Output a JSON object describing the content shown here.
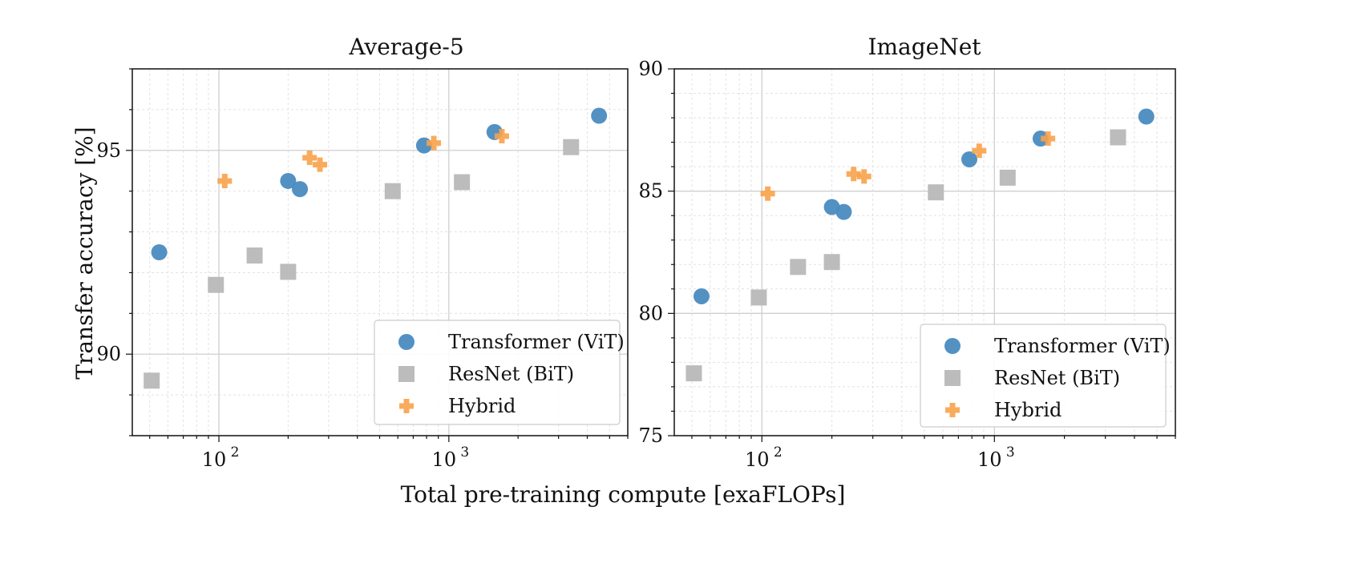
{
  "figure": {
    "xlabel": "Total pre-training compute [exaFLOPs]",
    "ylabel": "Transfer accuracy [%]"
  },
  "colors": {
    "vit": "#4a8bc0",
    "bit": "#bcbcbc",
    "hybrid": "#f8a24a",
    "grid_major": "#cfcfcf",
    "grid_minor": "#e2e2e2",
    "axis": "#111111"
  },
  "chart_data": [
    {
      "type": "scatter",
      "title": "Average-5",
      "xscale": "log",
      "xlim": [
        42,
        6000
      ],
      "ylim": [
        88,
        97
      ],
      "xticks": [
        {
          "value": 100,
          "base": "10",
          "exp": "2"
        },
        {
          "value": 1000,
          "base": "10",
          "exp": "3"
        }
      ],
      "yticks": [
        90,
        95
      ],
      "ytick_labels": [
        "90",
        "95"
      ],
      "legend_position": "lower-right",
      "series": [
        {
          "name": "Transformer (ViT)",
          "marker": "circle",
          "points": [
            [
              55,
              92.5
            ],
            [
              200,
              94.25
            ],
            [
              225,
              94.05
            ],
            [
              780,
              95.12
            ],
            [
              1580,
              95.45
            ],
            [
              4500,
              95.85
            ]
          ]
        },
        {
          "name": "ResNet (BiT)",
          "marker": "square",
          "points": [
            [
              51,
              89.35
            ],
            [
              97,
              91.7
            ],
            [
              143,
              92.42
            ],
            [
              200,
              92.02
            ],
            [
              570,
              94.0
            ],
            [
              1140,
              94.22
            ],
            [
              3400,
              95.08
            ]
          ]
        },
        {
          "name": "Hybrid",
          "marker": "plus",
          "points": [
            [
              106,
              94.25
            ],
            [
              248,
              94.82
            ],
            [
              275,
              94.65
            ],
            [
              860,
              95.18
            ],
            [
              1700,
              95.35
            ]
          ]
        }
      ]
    },
    {
      "type": "scatter",
      "title": "ImageNet",
      "xscale": "log",
      "xlim": [
        42,
        6000
      ],
      "ylim": [
        75,
        90
      ],
      "xticks": [
        {
          "value": 100,
          "base": "10",
          "exp": "2"
        },
        {
          "value": 1000,
          "base": "10",
          "exp": "3"
        }
      ],
      "yticks": [
        75,
        80,
        85,
        90
      ],
      "ytick_labels": [
        "75",
        "80",
        "85",
        "90"
      ],
      "legend_position": "lower-right",
      "series": [
        {
          "name": "Transformer (ViT)",
          "marker": "circle",
          "points": [
            [
              55,
              80.7
            ],
            [
              200,
              84.35
            ],
            [
              225,
              84.15
            ],
            [
              780,
              86.3
            ],
            [
              1580,
              87.15
            ],
            [
              4500,
              88.05
            ]
          ]
        },
        {
          "name": "ResNet (BiT)",
          "marker": "square",
          "points": [
            [
              51,
              77.55
            ],
            [
              97,
              80.65
            ],
            [
              143,
              81.9
            ],
            [
              200,
              82.1
            ],
            [
              560,
              84.95
            ],
            [
              1140,
              85.55
            ],
            [
              3400,
              87.2
            ]
          ]
        },
        {
          "name": "Hybrid",
          "marker": "plus",
          "points": [
            [
              106,
              84.9
            ],
            [
              248,
              85.7
            ],
            [
              275,
              85.6
            ],
            [
              860,
              86.65
            ],
            [
              1700,
              87.15
            ]
          ]
        }
      ]
    }
  ]
}
